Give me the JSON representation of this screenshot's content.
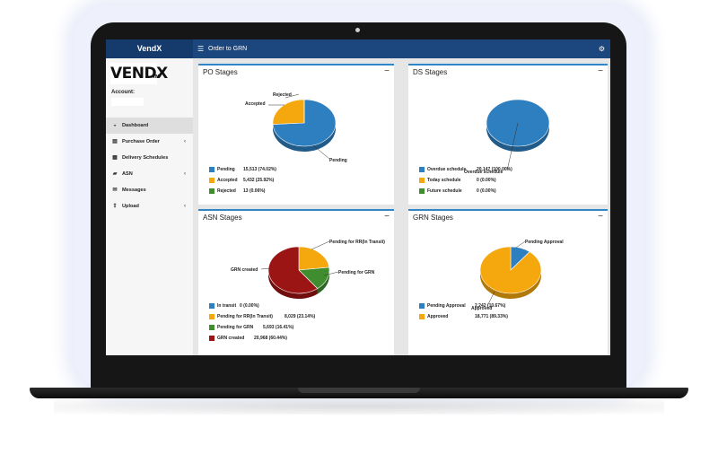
{
  "app": {
    "brand": "VendX",
    "page_title": "Order to GRN",
    "logo_text": "VENDX",
    "logo_tm": "TM"
  },
  "icons": {
    "menu": "hamburger-icon",
    "settings": "gear-icon"
  },
  "sidebar": {
    "account_label": "Account:",
    "items": [
      {
        "label": "Dashboard",
        "icon": "dashboard-icon",
        "caret": ""
      },
      {
        "label": "Purchase Order",
        "icon": "document-icon",
        "caret": "‹"
      },
      {
        "label": "Delivery Schedules",
        "icon": "calendar-icon",
        "caret": ""
      },
      {
        "label": "ASN",
        "icon": "truck-icon",
        "caret": "‹"
      },
      {
        "label": "Messages",
        "icon": "envelope-icon",
        "caret": ""
      },
      {
        "label": "Upload",
        "icon": "upload-icon",
        "caret": "‹"
      }
    ]
  },
  "panels": {
    "po": {
      "title": "PO Stages",
      "collapse": "−",
      "slice_labels": [
        "Rejected",
        "Accepted",
        "Pending"
      ],
      "legend": [
        {
          "label": "Pending",
          "value": "15,513 (74.02%)"
        },
        {
          "label": "Accepted",
          "value": "5,432 (25.92%)"
        },
        {
          "label": "Rejected",
          "value": "13 (0.06%)"
        }
      ]
    },
    "ds": {
      "title": "DS Stages",
      "collapse": "−",
      "slice_labels": [
        "Overdue schedule"
      ],
      "legend": [
        {
          "label": "Overdue schedule",
          "value": "20,147 (100.00%)"
        },
        {
          "label": "Today schedule",
          "value": "0 (0.00%)"
        },
        {
          "label": "Future schedule",
          "value": "0 (0.00%)"
        }
      ]
    },
    "asn": {
      "title": "ASN Stages",
      "collapse": "−",
      "slice_labels": [
        "Pending for RR(In Transit)",
        "Pending for GRN",
        "GRN created"
      ],
      "legend": [
        {
          "label": "In transit",
          "value": "0 (0.00%)"
        },
        {
          "label": "Pending for RR(In Transit)",
          "value": "8,029 (23.14%)"
        },
        {
          "label": "Pending for GRN",
          "value": "5,693 (16.41%)"
        },
        {
          "label": "GRN created",
          "value": "20,968 (60.44%)"
        }
      ]
    },
    "grn": {
      "title": "GRN Stages",
      "collapse": "−",
      "slice_labels": [
        "Pending Approval",
        "Approved"
      ],
      "legend": [
        {
          "label": "Pending Approval",
          "value": "2,242 (10.67%)"
        },
        {
          "label": "Approved",
          "value": "18,771 (89.33%)"
        }
      ]
    }
  },
  "chart_data": [
    {
      "type": "pie",
      "title": "PO Stages",
      "categories": [
        "Pending",
        "Accepted",
        "Rejected"
      ],
      "values": [
        15513,
        5432,
        13
      ],
      "colors": [
        "#2e7fc0",
        "#f5a80d",
        "#3f8d2f"
      ]
    },
    {
      "type": "pie",
      "title": "DS Stages",
      "categories": [
        "Overdue schedule",
        "Today schedule",
        "Future schedule"
      ],
      "values": [
        20147,
        0,
        0
      ],
      "colors": [
        "#2e7fc0",
        "#f5a80d",
        "#3f8d2f"
      ]
    },
    {
      "type": "pie",
      "title": "ASN Stages",
      "categories": [
        "In transit",
        "Pending for RR(In Transit)",
        "Pending for GRN",
        "GRN created"
      ],
      "values": [
        0,
        8029,
        5693,
        20968
      ],
      "colors": [
        "#2e7fc0",
        "#f5a80d",
        "#3f8d2f",
        "#9b1515"
      ]
    },
    {
      "type": "pie",
      "title": "GRN Stages",
      "categories": [
        "Pending Approval",
        "Approved"
      ],
      "values": [
        2242,
        18771
      ],
      "colors": [
        "#2e7fc0",
        "#f5a80d"
      ]
    }
  ]
}
